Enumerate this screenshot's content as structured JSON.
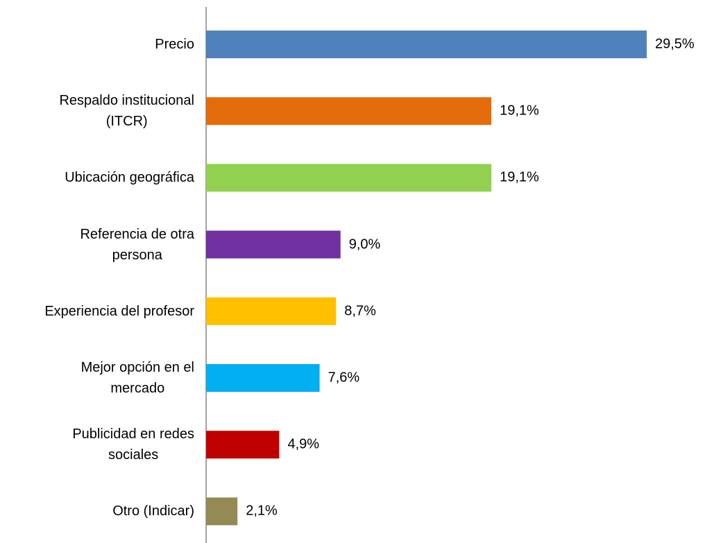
{
  "chart_data": {
    "type": "bar",
    "orientation": "horizontal",
    "categories": [
      "Precio",
      "Respaldo institucional\n(ITCR)",
      "Ubicación geográfica",
      "Referencia de otra\npersona",
      "Experiencia del profesor",
      "Mejor opción en el\nmercado",
      "Publicidad en redes\nsociales",
      "Otro (Indicar)"
    ],
    "values": [
      29.5,
      19.1,
      19.1,
      9.0,
      8.7,
      7.6,
      4.9,
      2.1
    ],
    "value_labels": [
      "29,5%",
      "19,1%",
      "19,1%",
      "9,0%",
      "8,7%",
      "7,6%",
      "4,9%",
      "2,1%"
    ],
    "colors": [
      "#4f81bd",
      "#e46c0a",
      "#92d050",
      "#7030a0",
      "#ffc000",
      "#00b0f0",
      "#c00000",
      "#948a54"
    ]
  }
}
